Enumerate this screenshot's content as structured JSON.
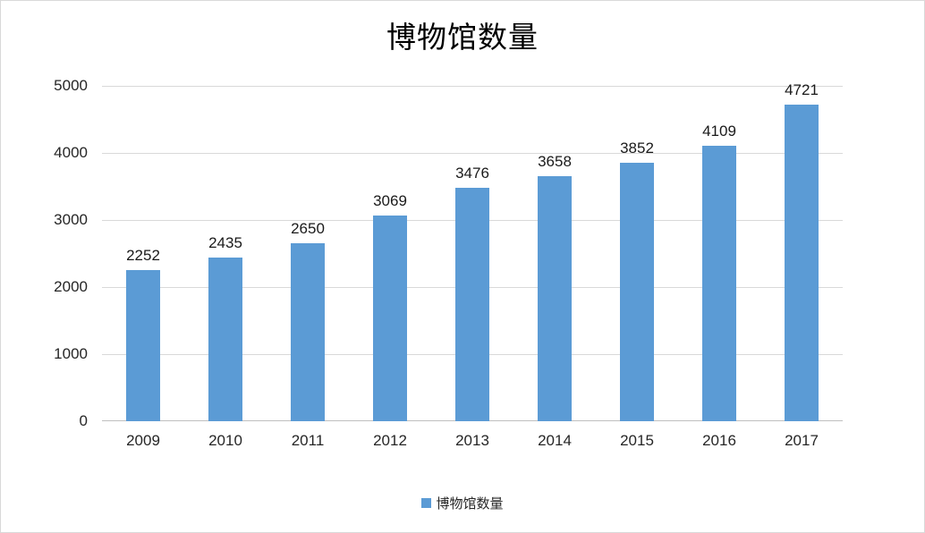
{
  "chart_data": {
    "type": "bar",
    "title": "博物馆数量",
    "series_name": "博物馆数量",
    "categories": [
      "2009",
      "2010",
      "2011",
      "2012",
      "2013",
      "2014",
      "2015",
      "2016",
      "2017"
    ],
    "values": [
      2252,
      2435,
      2650,
      3069,
      3476,
      3658,
      3852,
      4109,
      4721
    ],
    "xlabel": "",
    "ylabel": "",
    "ylim": [
      0,
      5000
    ],
    "yticks": [
      0,
      1000,
      2000,
      3000,
      4000,
      5000
    ],
    "grid": true,
    "legend_position": "bottom",
    "data_labels": true,
    "bar_color": "#5B9BD5",
    "gridline_color": "#D9D9D9",
    "axis_line_color": "#BFBFBF",
    "tick_text_color": "#262626",
    "title_color": "#000000"
  }
}
